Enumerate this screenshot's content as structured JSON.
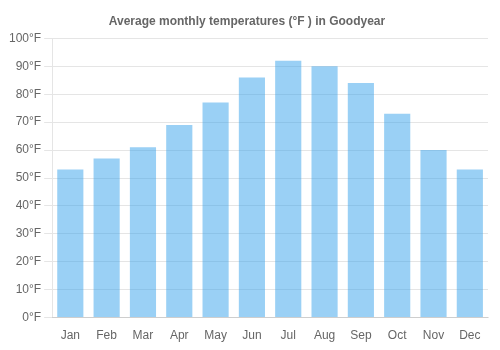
{
  "chart_data": {
    "type": "bar",
    "title": "Average monthly temperatures (°F ) in Goodyear",
    "categories": [
      "Jan",
      "Feb",
      "Mar",
      "Apr",
      "May",
      "Jun",
      "Jul",
      "Aug",
      "Sep",
      "Oct",
      "Nov",
      "Dec"
    ],
    "values": [
      53,
      57,
      61,
      69,
      77,
      86,
      92,
      90,
      84,
      73,
      60,
      53
    ],
    "ylim": [
      0,
      100
    ],
    "yticks": [
      {
        "value": 0,
        "label": "0°F"
      },
      {
        "value": 10,
        "label": "10°F"
      },
      {
        "value": 20,
        "label": "20°F"
      },
      {
        "value": 30,
        "label": "30°F"
      },
      {
        "value": 40,
        "label": "40°F"
      },
      {
        "value": 50,
        "label": "50°F"
      },
      {
        "value": 60,
        "label": "60°F"
      },
      {
        "value": 70,
        "label": "70°F"
      },
      {
        "value": 80,
        "label": "80°F"
      },
      {
        "value": 90,
        "label": "90°F"
      },
      {
        "value": 100,
        "label": "100°F"
      }
    ],
    "grid": true
  }
}
